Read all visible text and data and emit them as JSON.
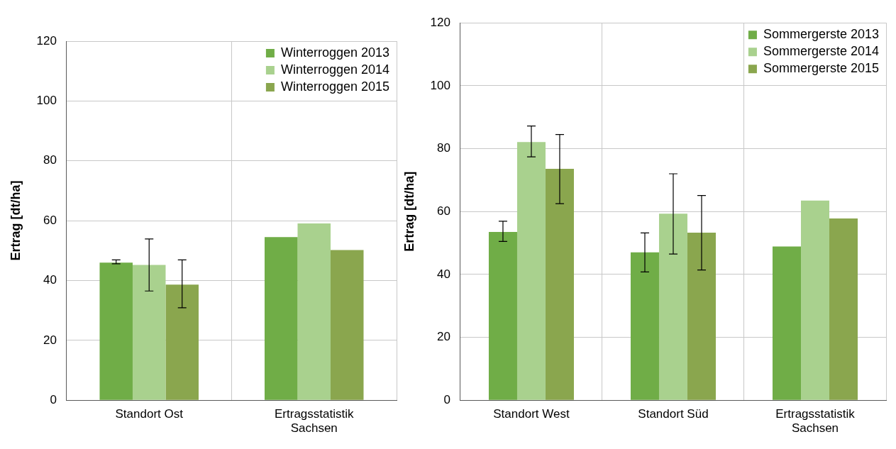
{
  "chart_data": [
    {
      "type": "bar",
      "categories": [
        "Standort Ost",
        "Ertragsstatistik\nSachsen"
      ],
      "ylabel": "Ertrag [dt/ha]",
      "ylim": [
        0,
        120
      ],
      "yticks": [
        0,
        20,
        40,
        60,
        80,
        100,
        120
      ],
      "grid": true,
      "legend": "top right",
      "series": [
        {
          "name": "Winterroggen 2013",
          "color": "#70ad47",
          "values": [
            46.0,
            54.5
          ],
          "errors": [
            [
              45.6,
              46.9
            ],
            null
          ]
        },
        {
          "name": "Winterroggen 2014",
          "color": "#a9d18e",
          "values": [
            45.2,
            59.1
          ],
          "errors": [
            [
              36.5,
              53.9
            ],
            null
          ]
        },
        {
          "name": "Winterroggen 2015",
          "color": "#8aa64e",
          "values": [
            38.6,
            50.2
          ],
          "errors": [
            [
              30.9,
              46.9
            ],
            null
          ]
        }
      ]
    },
    {
      "type": "bar",
      "categories": [
        "Standort West",
        "Standort Süd",
        "Ertragsstatistik\nSachsen"
      ],
      "ylabel": "Ertrag [dt/ha]",
      "ylim": [
        0,
        120
      ],
      "yticks": [
        0,
        20,
        40,
        60,
        80,
        100,
        120
      ],
      "grid": true,
      "legend": "top right",
      "series": [
        {
          "name": "Sommergerste 2013",
          "color": "#70ad47",
          "values": [
            53.5,
            47.0,
            48.9
          ],
          "errors": [
            [
              50.5,
              56.9
            ],
            [
              40.8,
              53.2
            ],
            null
          ]
        },
        {
          "name": "Sommergerste 2014",
          "color": "#a9d18e",
          "values": [
            82.1,
            59.3,
            63.5
          ],
          "errors": [
            [
              77.4,
              87.2
            ],
            [
              46.5,
              72.0
            ],
            null
          ]
        },
        {
          "name": "Sommergerste 2015",
          "color": "#8aa64e",
          "values": [
            73.6,
            53.3,
            57.8
          ],
          "errors": [
            [
              62.5,
              84.5
            ],
            [
              41.4,
              65.1
            ],
            null
          ]
        }
      ]
    }
  ]
}
